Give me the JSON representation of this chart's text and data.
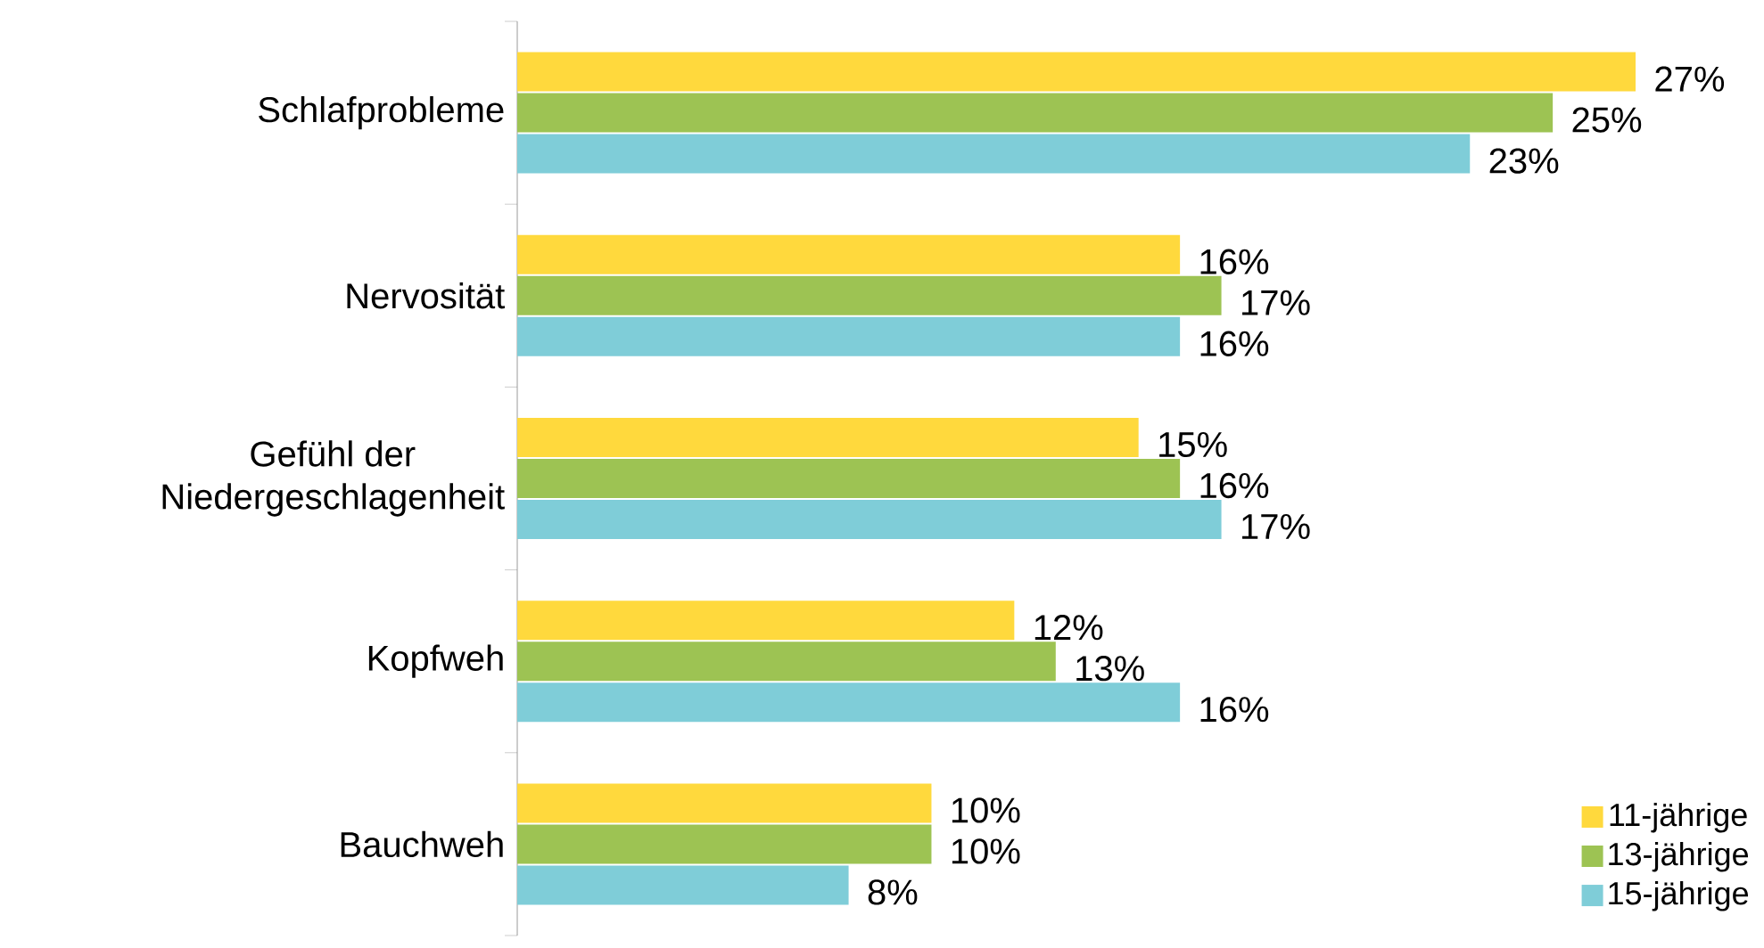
{
  "chart_data": {
    "type": "bar",
    "orientation": "horizontal",
    "categories": [
      "Schlafprobleme",
      "Nervosität",
      "Gefühl der Niedergeschlagenheit",
      "Kopfweh",
      "Bauchweh"
    ],
    "series": [
      {
        "name": "11-jährige",
        "color": "#ffd93d",
        "values": [
          27,
          16,
          15,
          12,
          10
        ],
        "value_labels": [
          "27%",
          "16%",
          "15%",
          "12%",
          "10%"
        ]
      },
      {
        "name": "13-jährige",
        "color": "#9dc353",
        "values": [
          25,
          17,
          16,
          13,
          10
        ],
        "value_labels": [
          "25%",
          "17%",
          "16%",
          "13%",
          "10%"
        ]
      },
      {
        "name": "15-jährige",
        "color": "#7fcdd8",
        "values": [
          23,
          16,
          17,
          16,
          8
        ],
        "value_labels": [
          "23%",
          "16%",
          "17%",
          "16%",
          "8%"
        ]
      }
    ],
    "tick_labels": "y",
    "legend": "bottom right"
  }
}
